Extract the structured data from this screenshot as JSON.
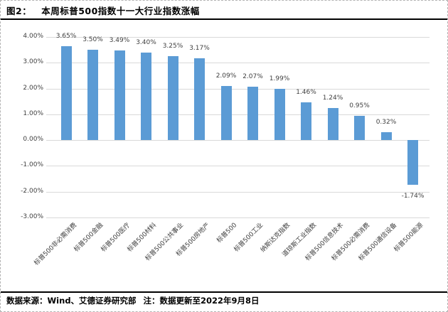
{
  "header": {
    "figure_label": "图2：",
    "title": "本周标普500指数十一大行业指数涨幅"
  },
  "footer": {
    "source": "数据来源：Wind、艾德证券研究部",
    "note": "注：数据更新至2022年9月8日"
  },
  "chart_data": {
    "type": "bar",
    "title": "本周标普500指数十一大行业指数涨幅",
    "categories": [
      "标普500非必需消费",
      "标普500金融",
      "标普500医疗",
      "标普500材料",
      "标普500公共事业",
      "标普500房地产",
      "标普500",
      "标普500工业",
      "纳斯达克指数",
      "道琼斯工业指数",
      "标普500信息技术",
      "标普500必需消费",
      "标普500通信设备",
      "标普500能源"
    ],
    "values": [
      3.65,
      3.5,
      3.49,
      3.4,
      3.25,
      3.17,
      2.09,
      2.07,
      1.99,
      1.46,
      1.24,
      0.95,
      0.32,
      -1.74
    ],
    "data_labels": [
      "3.65%",
      "3.50%",
      "3.49%",
      "3.40%",
      "3.25%",
      "3.17%",
      "2.09%",
      "2.07%",
      "1.99%",
      "1.46%",
      "1.24%",
      "0.95%",
      "0.32%",
      "-1.74%"
    ],
    "y_ticks": [
      {
        "label": "4.00%",
        "value": 4
      },
      {
        "label": "3.00%",
        "value": 3
      },
      {
        "label": "2.00%",
        "value": 2
      },
      {
        "label": "1.00%",
        "value": 1
      },
      {
        "label": "0.00%",
        "value": 0
      },
      {
        "label": "-1.00%",
        "value": -1
      },
      {
        "label": "-2.00%",
        "value": -2
      },
      {
        "label": "-3.00%",
        "value": -3
      }
    ],
    "ylim": [
      -3,
      4
    ],
    "xlabel": "",
    "ylabel": "",
    "grid": true,
    "legend": false,
    "bar_color": "#5b9bd5",
    "gridline_color": "#d9d9d9",
    "label_color": "#404040"
  }
}
